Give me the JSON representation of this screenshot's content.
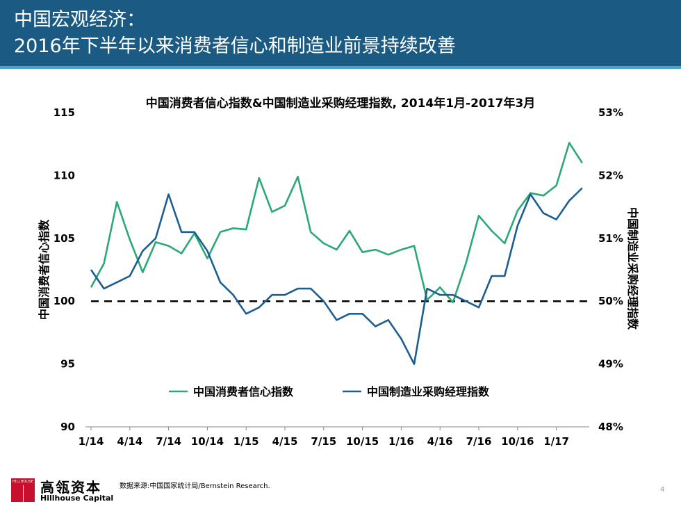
{
  "header": {
    "title_line1": "中国宏观经济：",
    "title_line2": "2016年下半年以来消费者信心和制造业前景持续改善"
  },
  "chart_data": {
    "type": "line",
    "title": "中国消费者信心指数&中国制造业采购经理指数, 2014年1月-2017年3月",
    "ylabel_left": "中国消费者信心指数",
    "ylabel_right": "中国制造业采购经理指数",
    "y_left_range": [
      90,
      115
    ],
    "y_left_ticks": [
      "90",
      "95",
      "100",
      "105",
      "110",
      "115"
    ],
    "y_right_range": [
      48,
      53
    ],
    "y_right_ticks": [
      "48%",
      "49%",
      "50%",
      "51%",
      "52%",
      "53%"
    ],
    "x_ticks": [
      "1/14",
      "4/14",
      "7/14",
      "10/14",
      "1/15",
      "4/15",
      "7/15",
      "10/15",
      "1/16",
      "4/16",
      "7/16",
      "10/16",
      "1/17"
    ],
    "reference_line": {
      "axis": "left",
      "value": 100,
      "style": "dashed"
    },
    "grid": false,
    "legend_position": "bottom",
    "colors": {
      "consumer": "#2aa876",
      "pmi": "#1b5e8f"
    },
    "series": [
      {
        "name": "中国消费者信心指数",
        "axis": "left",
        "values": [
          101.1,
          103.0,
          107.9,
          104.9,
          102.3,
          104.7,
          104.4,
          103.8,
          105.4,
          103.4,
          105.5,
          105.8,
          105.7,
          109.8,
          107.1,
          107.6,
          109.9,
          105.5,
          104.6,
          104.1,
          105.6,
          103.9,
          104.1,
          103.7,
          104.1,
          104.4,
          100.1,
          101.1,
          99.9,
          103.0,
          106.8,
          105.6,
          104.6,
          107.2,
          108.6,
          108.4,
          109.2,
          112.6,
          111.0
        ]
      },
      {
        "name": "中国制造业采购经理指数",
        "axis": "right",
        "values": [
          50.5,
          50.2,
          50.3,
          50.4,
          50.8,
          51.0,
          51.7,
          51.1,
          51.1,
          50.8,
          50.3,
          50.1,
          49.8,
          49.9,
          50.1,
          50.1,
          50.2,
          50.2,
          50.0,
          49.7,
          49.8,
          49.8,
          49.6,
          49.7,
          49.4,
          49.0,
          50.2,
          50.1,
          50.1,
          50.0,
          49.9,
          50.4,
          50.4,
          51.2,
          51.7,
          51.4,
          51.3,
          51.6,
          51.8
        ]
      }
    ]
  },
  "footer": {
    "source": "数据来源:中国国家统计局/Bernstein Research.",
    "logo_small": "HILLHOUSE",
    "company_cn": "高瓴资本",
    "company_en": "Hillhouse Capital",
    "page_number": "4"
  }
}
